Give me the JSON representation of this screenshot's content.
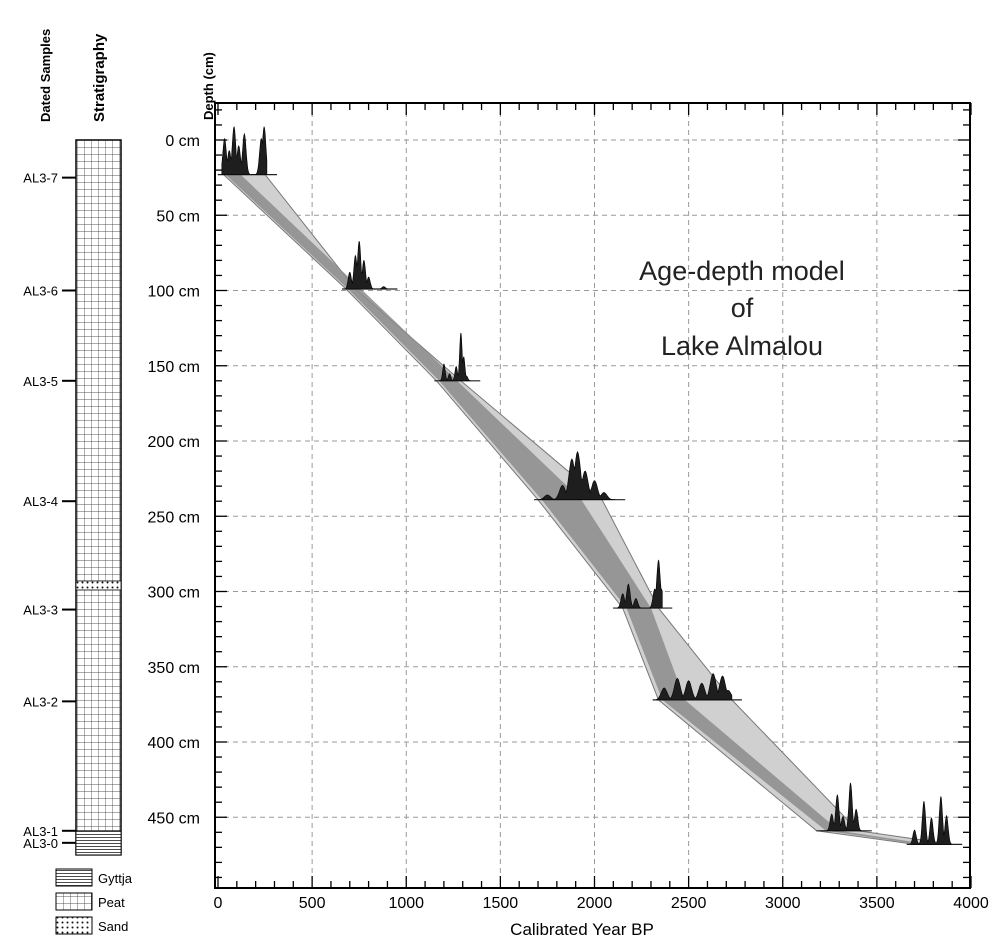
{
  "chart_data": {
    "type": "scatter",
    "title_lines": [
      "Age-depth model",
      "of",
      "Lake Almalou"
    ],
    "xlabel": "Calibrated Year  BP",
    "ylabel": "Depth (cm)",
    "xlim": [
      0,
      4000
    ],
    "ylim_depth": [
      0,
      480
    ],
    "x_ticks": [
      0,
      500,
      1000,
      1500,
      2000,
      2500,
      3000,
      3500,
      4000
    ],
    "x_tick_labels": [
      "0",
      "500",
      "1000",
      "1500",
      "2000",
      "2500",
      "3000",
      "3500",
      "4000"
    ],
    "y_ticks": [
      0,
      50,
      100,
      150,
      200,
      250,
      300,
      350,
      400,
      450
    ],
    "y_tick_labels": [
      "0 cm",
      "50 cm",
      "100 cm",
      "150 cm",
      "200 cm",
      "250 cm",
      "300 cm",
      "350 cm",
      "400 cm",
      "450 cm"
    ],
    "grid": true,
    "grid_style": "dashed",
    "dated_samples": [
      {
        "label": "AL3-7",
        "depth": 23,
        "age_min": 20,
        "age_max": 260,
        "peaks": [
          [
            35,
            0.75
          ],
          [
            60,
            0.5
          ],
          [
            85,
            1.0
          ],
          [
            110,
            0.6
          ],
          [
            140,
            0.85
          ],
          [
            230,
            0.75
          ],
          [
            245,
            1.0
          ]
        ]
      },
      {
        "label": "AL3-6",
        "depth": 99,
        "age_min": 680,
        "age_max": 900,
        "peaks": [
          [
            700,
            0.35
          ],
          [
            730,
            0.7
          ],
          [
            750,
            1.0
          ],
          [
            775,
            0.6
          ],
          [
            800,
            0.25
          ],
          [
            880,
            0.05
          ]
        ]
      },
      {
        "label": "AL3-5",
        "depth": 160,
        "age_min": 1170,
        "age_max": 1340,
        "peaks": [
          [
            1200,
            0.35
          ],
          [
            1230,
            0.15
          ],
          [
            1265,
            0.3
          ],
          [
            1290,
            1.0
          ],
          [
            1305,
            0.5
          ],
          [
            1320,
            0.1
          ]
        ]
      },
      {
        "label": "AL3-4",
        "depth": 239,
        "age_min": 1700,
        "age_max": 2110,
        "peaks": [
          [
            1750,
            0.1
          ],
          [
            1830,
            0.3
          ],
          [
            1880,
            0.85
          ],
          [
            1910,
            1.0
          ],
          [
            1950,
            0.6
          ],
          [
            2000,
            0.4
          ],
          [
            2050,
            0.15
          ]
        ]
      },
      {
        "label": "AL3-3",
        "depth": 311,
        "age_min": 2120,
        "age_max": 2360,
        "peaks": [
          [
            2150,
            0.3
          ],
          [
            2180,
            0.5
          ],
          [
            2220,
            0.2
          ],
          [
            2320,
            0.4
          ],
          [
            2340,
            1.0
          ],
          [
            2355,
            0.4
          ]
        ]
      },
      {
        "label": "AL3-2",
        "depth": 372,
        "age_min": 2330,
        "age_max": 2730,
        "peaks": [
          [
            2370,
            0.25
          ],
          [
            2440,
            0.45
          ],
          [
            2500,
            0.4
          ],
          [
            2570,
            0.35
          ],
          [
            2630,
            0.55
          ],
          [
            2680,
            0.5
          ],
          [
            2710,
            0.2
          ]
        ]
      },
      {
        "label": "AL3-1",
        "depth": 459,
        "age_min": 3200,
        "age_max": 3420,
        "peaks": [
          [
            3260,
            0.35
          ],
          [
            3290,
            0.75
          ],
          [
            3320,
            0.3
          ],
          [
            3360,
            1.0
          ],
          [
            3390,
            0.45
          ]
        ]
      },
      {
        "label": "AL3-0",
        "depth": 468,
        "age_min": 3680,
        "age_max": 3900,
        "peaks": [
          [
            3700,
            0.3
          ],
          [
            3750,
            0.9
          ],
          [
            3790,
            0.55
          ],
          [
            3840,
            1.0
          ],
          [
            3870,
            0.6
          ]
        ]
      }
    ],
    "envelope_light": {
      "left": [
        [
          30,
          23
        ],
        [
          680,
          99
        ],
        [
          1160,
          160
        ],
        [
          1700,
          239
        ],
        [
          2150,
          311
        ],
        [
          2340,
          372
        ],
        [
          3180,
          459
        ],
        [
          3700,
          468
        ]
      ],
      "right": [
        [
          250,
          23
        ],
        [
          730,
          99
        ],
        [
          1290,
          160
        ],
        [
          2040,
          239
        ],
        [
          2340,
          311
        ],
        [
          2730,
          372
        ],
        [
          3400,
          459
        ],
        [
          3900,
          468
        ]
      ]
    },
    "envelope_dark": {
      "left": [
        [
          40,
          23
        ],
        [
          690,
          99
        ],
        [
          1175,
          160
        ],
        [
          1720,
          239
        ],
        [
          2170,
          311
        ],
        [
          2360,
          372
        ],
        [
          3230,
          459
        ],
        [
          3720,
          468
        ]
      ],
      "right": [
        [
          120,
          23
        ],
        [
          760,
          99
        ],
        [
          1270,
          160
        ],
        [
          1930,
          239
        ],
        [
          2300,
          311
        ],
        [
          2480,
          372
        ],
        [
          3300,
          459
        ],
        [
          3780,
          468
        ]
      ]
    }
  },
  "left_panel": {
    "dated_samples_header": "Dated Samples",
    "stratigraphy_header": "Stratigraphy",
    "sample_labels": [
      "AL3-7",
      "AL3-6",
      "AL3-5",
      "AL3-4",
      "AL3-3",
      "AL3-2",
      "AL3-1",
      "AL3-0"
    ],
    "sand_layer_depth": [
      293,
      299
    ],
    "gyttja_layer_depth": [
      459,
      475
    ],
    "legend": [
      {
        "label": "Gyttja",
        "pattern": "horizontal-lines"
      },
      {
        "label": "Peat",
        "pattern": "grid"
      },
      {
        "label": "Sand",
        "pattern": "dots"
      }
    ]
  },
  "colors": {
    "envelope_light": "#d0d0d0",
    "envelope_dark": "#8c8c8c",
    "peaks": "#1e1e1e",
    "grid": "#9a9a9a",
    "axis": "#000000"
  }
}
